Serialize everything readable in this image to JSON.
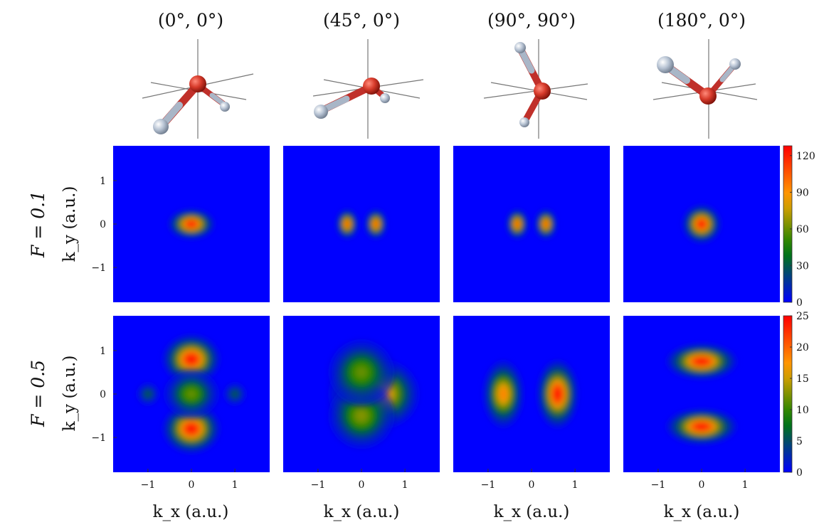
{
  "columns": [
    {
      "title": "(0°, 0°)",
      "molecule": {
        "long_bond_dir": "down-left",
        "short_bond_dir": "down-right"
      }
    },
    {
      "title": "(45°, 0°)",
      "molecule": {
        "long_bond_dir": "left",
        "short_bond_dir": "down-right"
      }
    },
    {
      "title": "(90°, 90°)",
      "molecule": {
        "long_bond_dir": "up-left",
        "short_bond_dir": "down-left"
      }
    },
    {
      "title": "(180°, 0°)",
      "molecule": {
        "long_bond_dir": "up-left",
        "short_bond_dir": "up-right"
      }
    }
  ],
  "rows": [
    {
      "label": "F = 0.1",
      "ylabel": "k_y (a.u.)",
      "colorbar": {
        "ticks": [
          "0",
          "30",
          "60",
          "90",
          "120"
        ],
        "min": 0,
        "max": 128
      }
    },
    {
      "label": "F = 0.5",
      "ylabel": "k_y (a.u.)",
      "colorbar": {
        "ticks": [
          "0",
          "5",
          "10",
          "15",
          "20",
          "25"
        ],
        "min": 0,
        "max": 25
      }
    }
  ],
  "axes": {
    "x_ticks": [
      "−1",
      "0",
      "1"
    ],
    "y_ticks": [
      "1",
      "0",
      "−1"
    ],
    "xlabel": "k_x (a.u.)",
    "range": [
      -1.8,
      1.8
    ]
  },
  "chart_data": {
    "type": "heatmap",
    "colormap": [
      "#0000ff",
      "#008000",
      "#ffa500",
      "#ff0000"
    ],
    "panels": [
      {
        "row": 0,
        "col": 0,
        "blobs": [
          {
            "x": 0.0,
            "y": 0.0,
            "value": 128,
            "shape": "horizontal-ellipse"
          }
        ]
      },
      {
        "row": 0,
        "col": 1,
        "blobs": [
          {
            "x": -0.33,
            "y": 0.0,
            "value": 110
          },
          {
            "x": 0.33,
            "y": 0.0,
            "value": 110
          }
        ]
      },
      {
        "row": 0,
        "col": 2,
        "blobs": [
          {
            "x": -0.33,
            "y": 0.0,
            "value": 110
          },
          {
            "x": 0.33,
            "y": 0.0,
            "value": 110
          }
        ]
      },
      {
        "row": 0,
        "col": 3,
        "blobs": [
          {
            "x": 0.0,
            "y": 0.0,
            "value": 128
          }
        ]
      },
      {
        "row": 1,
        "col": 0,
        "blobs": [
          {
            "x": 0.0,
            "y": 0.8,
            "value": 25
          },
          {
            "x": 0.0,
            "y": -0.8,
            "value": 25
          },
          {
            "x": 0.0,
            "y": 0.0,
            "value": 12
          },
          {
            "x": -1.0,
            "y": 0.0,
            "value": 6
          },
          {
            "x": 1.0,
            "y": 0.0,
            "value": 6
          }
        ]
      },
      {
        "row": 1,
        "col": 1,
        "blobs": [
          {
            "x": 0.0,
            "y": 0.0,
            "value": 13
          },
          {
            "x": 0.55,
            "y": 0.0,
            "value": 17
          },
          {
            "x": 0.0,
            "y": -0.5,
            "value": 13
          },
          {
            "x": 0.0,
            "y": 0.5,
            "value": 12
          }
        ]
      },
      {
        "row": 1,
        "col": 2,
        "blobs": [
          {
            "x": -0.65,
            "y": 0.0,
            "value": 19
          },
          {
            "x": 0.6,
            "y": 0.0,
            "value": 25
          }
        ]
      },
      {
        "row": 1,
        "col": 3,
        "blobs": [
          {
            "x": 0.0,
            "y": 0.75,
            "value": 25
          },
          {
            "x": 0.0,
            "y": -0.75,
            "value": 25
          }
        ]
      }
    ]
  }
}
